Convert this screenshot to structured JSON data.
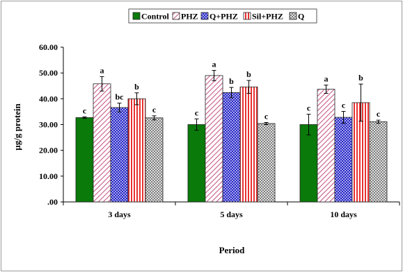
{
  "chart_data": {
    "type": "bar",
    "title": "",
    "xlabel": "Period",
    "ylabel": "µg/g protein",
    "categories": [
      "3 days",
      "5 days",
      "10 days"
    ],
    "ylim": [
      0,
      60
    ],
    "yticks": [
      ".00",
      "10.00",
      "20.00",
      "30.00",
      "40.00",
      "50.00",
      "60.00"
    ],
    "grid": false,
    "legend_position": "top",
    "series": [
      {
        "name": "Control",
        "pattern": "solid",
        "color": "#0a7a0a",
        "values": [
          32.7,
          30.0,
          30.0
        ],
        "errors": [
          0.3,
          2.2,
          4.0
        ],
        "letters": [
          "c",
          "c",
          "c"
        ]
      },
      {
        "name": "PHZ",
        "pattern": "diagonal",
        "color": "#c85a8a",
        "values": [
          45.8,
          49.0,
          43.7
        ],
        "errors": [
          2.8,
          2.0,
          1.6
        ],
        "letters": [
          "a",
          "a",
          "a"
        ]
      },
      {
        "name": "Q+PHZ",
        "pattern": "crosshatch",
        "color": "#2323c8",
        "values": [
          36.6,
          42.4,
          32.8
        ],
        "errors": [
          1.7,
          2.0,
          2.3
        ],
        "letters": [
          "bc",
          "b",
          "c"
        ]
      },
      {
        "name": "Sil+PHZ",
        "pattern": "vertical",
        "color": "#e83030",
        "values": [
          40.0,
          44.6,
          38.5
        ],
        "errors": [
          2.3,
          2.5,
          7.2
        ],
        "letters": [
          "b",
          "b",
          "b"
        ]
      },
      {
        "name": "Q",
        "pattern": "checker",
        "color": "#7a7a7a",
        "values": [
          32.6,
          30.4,
          31.1
        ],
        "errors": [
          0.8,
          0.4,
          0.6
        ],
        "letters": [
          "c",
          "c",
          "c"
        ]
      }
    ]
  }
}
